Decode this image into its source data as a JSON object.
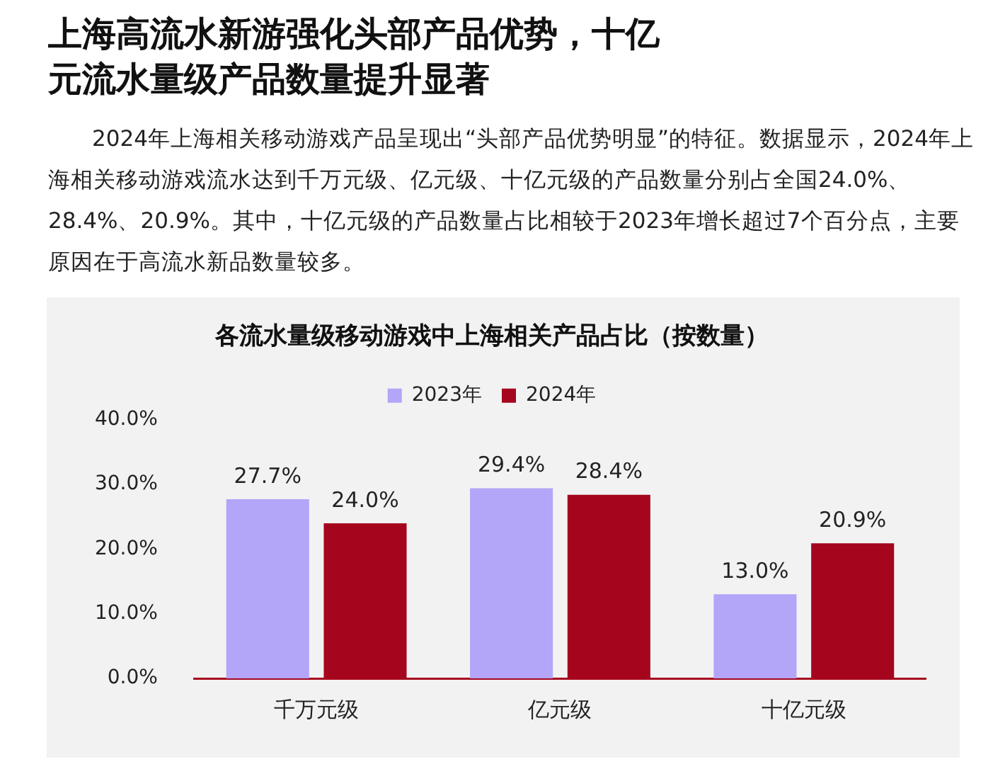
{
  "chart_data": {
    "type": "bar",
    "title": "各流水量级移动游戏中上海相关产品占比（按数量）",
    "annotations": [
      "上海高流水新游强化头部产品优势，十亿元流水量级产品数量提升显著",
      "2024年上海相关移动游戏产品呈现出“头部产品优势明显”的特征。数据显示，2024年上海相关移动游戏流水达到千万元级、亿元级、十亿元级的产品数量分别占全国24.0%、28.4%、20.9%。其中，十亿元级的产品数量占比相较于2023年增长超过7个百分点，主要原因在于高流水新品数量较多。"
    ],
    "categories": [
      "千万元级",
      "亿元级",
      "十亿元级"
    ],
    "series": [
      {
        "name": "2023年",
        "color": "#b3a5f7",
        "values": [
          27.7,
          29.4,
          13.0
        ],
        "value_labels": [
          "27.7%",
          "29.4%",
          "13.0%"
        ]
      },
      {
        "name": "2024年",
        "color": "#a5061e",
        "values": [
          24.0,
          28.4,
          20.9
        ],
        "value_labels": [
          "24.0%",
          "28.4%",
          "20.9%"
        ]
      }
    ],
    "ylim": [
      0,
      40
    ],
    "yticks": [
      {
        "value": 0,
        "label": "0.0%"
      },
      {
        "value": 10,
        "label": "10.0%"
      },
      {
        "value": 20,
        "label": "20.0%"
      },
      {
        "value": 30,
        "label": "30.0%"
      },
      {
        "value": 40,
        "label": "40.0%"
      }
    ],
    "grid": false,
    "legend": "top"
  }
}
